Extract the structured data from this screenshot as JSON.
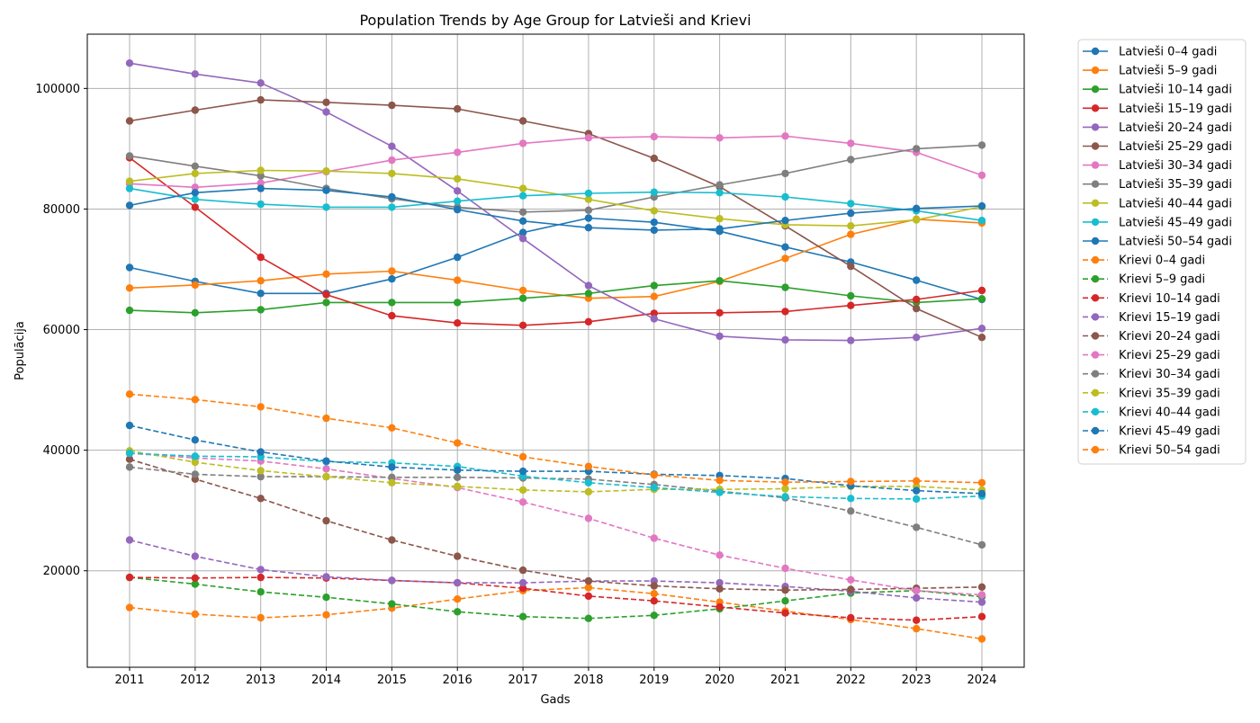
{
  "chart_data": {
    "type": "line",
    "title": "Population Trends by Age Group for Latvieši and Krievi",
    "xlabel": "Gads",
    "ylabel": "Populācija",
    "x": [
      2011,
      2012,
      2013,
      2014,
      2015,
      2016,
      2017,
      2018,
      2019,
      2020,
      2021,
      2022,
      2023,
      2024
    ],
    "x_tick_labels": [
      "2011",
      "2012",
      "2013",
      "2014",
      "2015",
      "2016",
      "2017",
      "2018",
      "2019",
      "2020",
      "2021",
      "2022",
      "2023",
      "2024"
    ],
    "ylim": [
      4000,
      109000
    ],
    "y_ticks": [
      20000,
      40000,
      60000,
      80000,
      100000
    ],
    "y_tick_labels": [
      "20000",
      "40000",
      "60000",
      "80000",
      "100000"
    ],
    "grid": true,
    "legend_position": "outside-right",
    "series": [
      {
        "name": "Latvieši 0–4 gadi",
        "color": "#1f77b4",
        "style": "solid",
        "values": [
          70300,
          68000,
          66000,
          66000,
          68400,
          72000,
          76100,
          78500,
          77800,
          76300,
          73700,
          71200,
          68200,
          65000
        ]
      },
      {
        "name": "Latvieši 5–9 gadi",
        "color": "#ff7f0e",
        "style": "solid",
        "values": [
          66900,
          67400,
          68100,
          69200,
          69700,
          68200,
          66500,
          65200,
          65500,
          68000,
          71800,
          75800,
          78300,
          77700
        ]
      },
      {
        "name": "Latvieši 10–14 gadi",
        "color": "#2ca02c",
        "style": "solid",
        "values": [
          63200,
          62800,
          63300,
          64500,
          64500,
          64500,
          65200,
          66000,
          67300,
          68100,
          67000,
          65600,
          64500,
          65100
        ]
      },
      {
        "name": "Latvieši 15–19 gadi",
        "color": "#d62728",
        "style": "solid",
        "values": [
          88500,
          80300,
          72000,
          65800,
          62300,
          61100,
          60700,
          61300,
          62700,
          62800,
          63000,
          64000,
          65000,
          66500
        ]
      },
      {
        "name": "Latvieši 20–24 gadi",
        "color": "#9467bd",
        "style": "solid",
        "values": [
          104200,
          102400,
          100900,
          96100,
          90400,
          83000,
          75100,
          67300,
          61800,
          58900,
          58300,
          58200,
          58700,
          60200
        ]
      },
      {
        "name": "Latvieši 25–29 gadi",
        "color": "#8c564b",
        "style": "solid",
        "values": [
          94600,
          96400,
          98100,
          97700,
          97200,
          96600,
          94600,
          92500,
          88400,
          83700,
          77200,
          70500,
          63500,
          58700
        ]
      },
      {
        "name": "Latvieši 30–34 gadi",
        "color": "#e377c2",
        "style": "solid",
        "values": [
          84200,
          83600,
          84300,
          86200,
          88100,
          89400,
          90900,
          91800,
          92000,
          91800,
          92100,
          90900,
          89400,
          85600
        ]
      },
      {
        "name": "Latvieši 35–39 gadi",
        "color": "#7f7f7f",
        "style": "solid",
        "values": [
          88800,
          87100,
          85500,
          83400,
          81700,
          80300,
          79500,
          79800,
          82000,
          84000,
          85900,
          88200,
          90000,
          90600
        ]
      },
      {
        "name": "Latvieši 40–44 gadi",
        "color": "#bcbd22",
        "style": "solid",
        "values": [
          84600,
          85900,
          86400,
          86300,
          85900,
          85000,
          83400,
          81600,
          79700,
          78400,
          77400,
          77200,
          78200,
          80400
        ]
      },
      {
        "name": "Latvieši 45–49 gadi",
        "color": "#17becf",
        "style": "solid",
        "values": [
          83400,
          81600,
          80800,
          80300,
          80300,
          81300,
          82200,
          82600,
          82800,
          82700,
          82000,
          80900,
          79700,
          78100
        ]
      },
      {
        "name": "Latvieši 50–54 gadi",
        "color": "#1f77b4",
        "style": "solid",
        "values": [
          80600,
          82700,
          83400,
          83100,
          82000,
          79900,
          78000,
          76900,
          76500,
          76700,
          78100,
          79300,
          80100,
          80500
        ]
      },
      {
        "name": "Krievi 0–4 gadi",
        "color": "#ff7f0e",
        "style": "dashed",
        "values": [
          13900,
          12800,
          12200,
          12700,
          13800,
          15300,
          16700,
          17200,
          16200,
          14800,
          13300,
          11900,
          10400,
          8700
        ]
      },
      {
        "name": "Krievi 5–9 gadi",
        "color": "#2ca02c",
        "style": "dashed",
        "values": [
          18900,
          17800,
          16500,
          15600,
          14500,
          13200,
          12400,
          12100,
          12600,
          13700,
          15000,
          16300,
          16700,
          15700
        ]
      },
      {
        "name": "Krievi 10–14 gadi",
        "color": "#d62728",
        "style": "dashed",
        "values": [
          18900,
          18800,
          18900,
          18800,
          18400,
          18000,
          17100,
          15800,
          15000,
          14000,
          13000,
          12200,
          11800,
          12400
        ]
      },
      {
        "name": "Krievi 15–19 gadi",
        "color": "#9467bd",
        "style": "dashed",
        "values": [
          25100,
          22400,
          20200,
          19000,
          18400,
          18000,
          18000,
          18300,
          18300,
          18000,
          17400,
          16600,
          15500,
          14800
        ]
      },
      {
        "name": "Krievi 20–24 gadi",
        "color": "#8c564b",
        "style": "dashed",
        "values": [
          38500,
          35200,
          32000,
          28300,
          25100,
          22400,
          20100,
          18300,
          17500,
          17000,
          16800,
          16900,
          17100,
          17300
        ]
      },
      {
        "name": "Krievi 25–29 gadi",
        "color": "#e377c2",
        "style": "dashed",
        "values": [
          39500,
          38700,
          38200,
          36900,
          35300,
          33800,
          31400,
          28700,
          25400,
          22600,
          20400,
          18500,
          16700,
          16000
        ]
      },
      {
        "name": "Krievi 30–34 gadi",
        "color": "#7f7f7f",
        "style": "dashed",
        "values": [
          37200,
          36000,
          35600,
          35600,
          35500,
          35500,
          35400,
          35200,
          34300,
          33200,
          32100,
          29900,
          27200,
          24300
        ]
      },
      {
        "name": "Krievi 35–39 gadi",
        "color": "#bcbd22",
        "style": "dashed",
        "values": [
          39900,
          38000,
          36600,
          35600,
          34600,
          34000,
          33400,
          33100,
          33500,
          33500,
          33600,
          34000,
          34000,
          33400
        ]
      },
      {
        "name": "Krievi 40–44 gadi",
        "color": "#17becf",
        "style": "dashed",
        "values": [
          39500,
          39000,
          38900,
          38100,
          37900,
          37300,
          35700,
          34600,
          33800,
          33000,
          32300,
          32000,
          31900,
          32400
        ]
      },
      {
        "name": "Krievi 45–49 gadi",
        "color": "#1f77b4",
        "style": "dashed",
        "values": [
          44100,
          41700,
          39700,
          38200,
          37200,
          36700,
          36500,
          36500,
          36000,
          35800,
          35300,
          34100,
          33300,
          32800
        ]
      },
      {
        "name": "Krievi 50–54 gadi",
        "color": "#ff7f0e",
        "style": "dashed",
        "values": [
          49300,
          48400,
          47200,
          45300,
          43700,
          41200,
          38900,
          37300,
          35900,
          35000,
          34700,
          34800,
          34900,
          34600
        ]
      }
    ]
  }
}
